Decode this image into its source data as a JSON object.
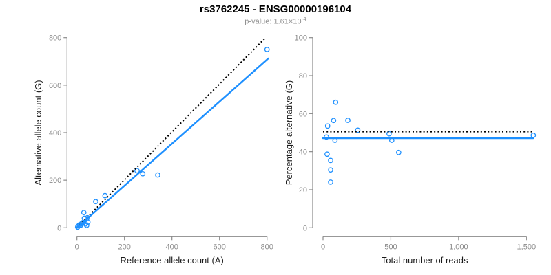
{
  "header": {
    "title": "rs3762245 - ENSG00000196104",
    "pvalue_base": "p-value: 1.61×10",
    "pvalue_exponent": "-4"
  },
  "colors": {
    "accent_blue": "#1E90FF",
    "dotted_black": "#000000",
    "axis_gray": "#8a8a8a",
    "tick_label_gray": "#8a8a8a",
    "axis_title_color": "#1a1a1a",
    "subtitle_gray": "#909090"
  },
  "chart_data": [
    {
      "type": "scatter",
      "xlabel": "Reference allele count (A)",
      "ylabel": "Alternative allele count (G)",
      "xlim": [
        0,
        800
      ],
      "ylim": [
        0,
        800
      ],
      "grid": false,
      "xticks": {
        "values": [
          0,
          200,
          400,
          600,
          800
        ],
        "labels": [
          "0",
          "200",
          "400",
          "600",
          "800"
        ]
      },
      "yticks": {
        "values": [
          0,
          200,
          400,
          600,
          800
        ],
        "labels": [
          "0",
          "200",
          "400",
          "600",
          "800"
        ]
      },
      "points": [
        [
          3,
          3
        ],
        [
          7,
          8
        ],
        [
          11,
          12
        ],
        [
          15,
          10
        ],
        [
          19,
          17
        ],
        [
          24,
          21
        ],
        [
          29,
          64
        ],
        [
          31,
          40
        ],
        [
          36,
          16
        ],
        [
          41,
          10
        ],
        [
          44,
          42
        ],
        [
          46,
          23
        ],
        [
          79,
          110
        ],
        [
          118,
          135
        ],
        [
          253,
          240
        ],
        [
          277,
          227
        ],
        [
          340,
          222
        ],
        [
          800,
          750
        ]
      ],
      "identity_line": {
        "x1": 0,
        "y1": 0,
        "x2": 794,
        "y2": 800,
        "style": "dotted"
      },
      "fit_line": {
        "x1": 0,
        "y1": 0,
        "x2": 805,
        "y2": 712,
        "style": "solid"
      }
    },
    {
      "type": "scatter",
      "xlabel": "Total number of reads",
      "ylabel": "Percentage alternative (G)",
      "xlim": [
        0,
        1550
      ],
      "ylim": [
        0,
        100
      ],
      "grid": false,
      "xticks": {
        "values": [
          0,
          500,
          1000,
          1500
        ],
        "labels": [
          "0",
          "500",
          "1,000",
          "1,500"
        ]
      },
      "yticks": {
        "values": [
          0,
          20,
          40,
          60,
          80,
          100
        ],
        "labels": [
          "0",
          "20",
          "40",
          "60",
          "80",
          "100"
        ]
      },
      "points": [
        [
          25,
          47.7
        ],
        [
          30,
          38.7
        ],
        [
          34,
          53.5
        ],
        [
          56,
          35.4
        ],
        [
          56,
          30.4
        ],
        [
          56,
          24
        ],
        [
          78,
          56.4
        ],
        [
          88,
          46
        ],
        [
          93,
          66
        ],
        [
          183,
          56.5
        ],
        [
          256,
          51.3
        ],
        [
          487,
          49.4
        ],
        [
          507,
          46
        ],
        [
          558,
          39.6
        ],
        [
          1551,
          48.6
        ]
      ],
      "identity_line": {
        "x1": 0,
        "y1": 50.5,
        "x2": 1550,
        "y2": 50.5,
        "style": "dotted"
      },
      "fit_line": {
        "x1": 0,
        "y1": 47.2,
        "x2": 1550,
        "y2": 47.2,
        "style": "solid"
      }
    }
  ]
}
